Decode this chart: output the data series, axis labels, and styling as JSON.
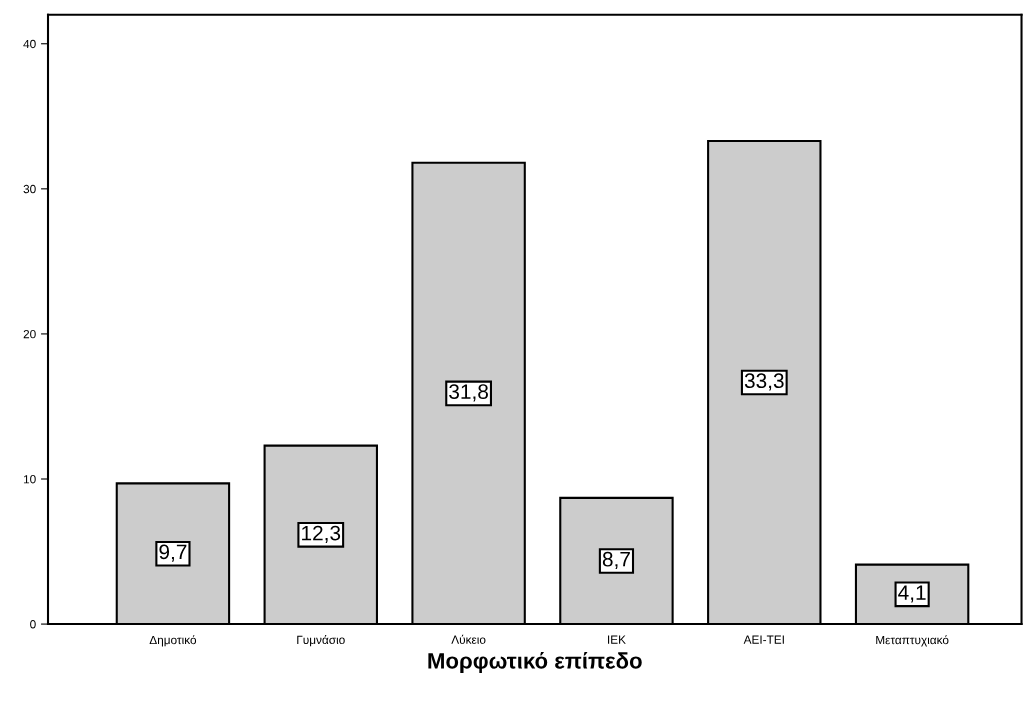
{
  "chart_data": {
    "type": "bar",
    "xlabel": "Μορφωτικό επίπεδο",
    "categories": [
      "Δημοτικό",
      "Γυμνάσιο",
      "Λύκειο",
      "ΙΕΚ",
      "ΑΕΙ-ΤΕΙ",
      "Μεταπτυχιακό"
    ],
    "values": [
      9.7,
      12.3,
      31.8,
      8.7,
      33.3,
      4.1
    ],
    "value_labels": [
      "9,7",
      "12,3",
      "31,8",
      "8,7",
      "33,3",
      "4,1"
    ],
    "color": "#cccccc",
    "ylim": [
      0,
      42
    ],
    "yticks": [
      0,
      10,
      20,
      30,
      40
    ],
    "grid": false
  }
}
